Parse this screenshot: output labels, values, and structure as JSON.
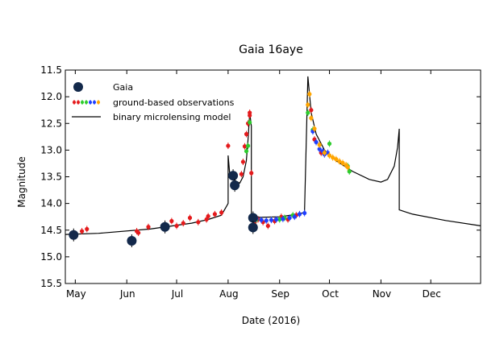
{
  "chart_data": {
    "type": "scatter",
    "title": "Gaia 16aye",
    "xlabel": "Date (2016)",
    "ylabel": "Magnitude",
    "x_unit": "date",
    "xlim": [
      "2016-04-25",
      "2016-12-31"
    ],
    "ylim": [
      15.5,
      11.5
    ],
    "y_inverted": true,
    "x_ticks": [
      {
        "date": "2016-05-01",
        "label": "May"
      },
      {
        "date": "2016-06-01",
        "label": "Jun"
      },
      {
        "date": "2016-07-01",
        "label": "Jul"
      },
      {
        "date": "2016-08-01",
        "label": "Aug"
      },
      {
        "date": "2016-09-01",
        "label": "Sep"
      },
      {
        "date": "2016-10-01",
        "label": "Oct"
      },
      {
        "date": "2016-11-01",
        "label": "Nov"
      },
      {
        "date": "2016-12-01",
        "label": "Dec"
      }
    ],
    "y_ticks": [
      "11.5",
      "12.0",
      "12.5",
      "13.0",
      "13.5",
      "14.0",
      "14.5",
      "15.0",
      "15.5"
    ],
    "grid": false,
    "legend_position": "top-left",
    "legend": [
      {
        "key": "gaia",
        "label": "Gaia"
      },
      {
        "key": "ground",
        "label": "ground-based observations"
      },
      {
        "key": "model",
        "label": "binary microlensing model"
      }
    ],
    "colors": {
      "gaia": "#13294b",
      "red": "#e41a1c",
      "green": "#2ecc2e",
      "blue": "#1f3fff",
      "orange": "#ffa500",
      "model": "#000000"
    },
    "series": [
      {
        "name": "Gaia",
        "key": "gaia",
        "points": [
          [
            "2016-04-30",
            14.59
          ],
          [
            "2016-06-04",
            14.7
          ],
          [
            "2016-06-24",
            14.44
          ],
          [
            "2016-08-04",
            13.48
          ],
          [
            "2016-08-05",
            13.66
          ],
          [
            "2016-08-16",
            14.27
          ],
          [
            "2016-08-16",
            14.45
          ]
        ]
      },
      {
        "name": "ground-based observations",
        "key": "ground",
        "groups": [
          {
            "color": "red",
            "points": [
              [
                "2016-05-05",
                14.52
              ],
              [
                "2016-05-08",
                14.48
              ],
              [
                "2016-06-07",
                14.52
              ],
              [
                "2016-06-08",
                14.55
              ],
              [
                "2016-06-14",
                14.44
              ],
              [
                "2016-06-28",
                14.33
              ],
              [
                "2016-07-01",
                14.42
              ],
              [
                "2016-07-05",
                14.37
              ],
              [
                "2016-07-09",
                14.27
              ],
              [
                "2016-07-14",
                14.35
              ],
              [
                "2016-07-19",
                14.3
              ],
              [
                "2016-07-20",
                14.24
              ],
              [
                "2016-07-24",
                14.2
              ],
              [
                "2016-07-28",
                14.17
              ],
              [
                "2016-08-01",
                12.92
              ],
              [
                "2016-08-09",
                13.45
              ],
              [
                "2016-08-10",
                13.22
              ],
              [
                "2016-08-11",
                12.93
              ],
              [
                "2016-08-12",
                12.7
              ],
              [
                "2016-08-13",
                12.5
              ],
              [
                "2016-08-14",
                12.3
              ],
              [
                "2016-08-14",
                12.35
              ],
              [
                "2016-08-15",
                13.43
              ],
              [
                "2016-08-17",
                14.35
              ],
              [
                "2016-08-19",
                14.3
              ],
              [
                "2016-08-22",
                14.35
              ],
              [
                "2016-08-25",
                14.42
              ],
              [
                "2016-08-29",
                14.33
              ],
              [
                "2016-09-02",
                14.25
              ],
              [
                "2016-09-06",
                14.3
              ],
              [
                "2016-09-11",
                14.22
              ],
              [
                "2016-09-20",
                12.25
              ],
              [
                "2016-09-22",
                12.8
              ],
              [
                "2016-09-26",
                13.05
              ]
            ]
          },
          {
            "color": "green",
            "points": [
              [
                "2016-08-12",
                13.02
              ],
              [
                "2016-08-13",
                12.92
              ],
              [
                "2016-08-14",
                12.48
              ],
              [
                "2016-08-18",
                14.3
              ],
              [
                "2016-09-01",
                14.3
              ],
              [
                "2016-09-04",
                14.27
              ],
              [
                "2016-09-09",
                14.22
              ],
              [
                "2016-09-18",
                12.3
              ],
              [
                "2016-09-21",
                12.62
              ],
              [
                "2016-10-01",
                12.88
              ],
              [
                "2016-10-12",
                13.3
              ],
              [
                "2016-10-13",
                13.4
              ]
            ]
          },
          {
            "color": "blue",
            "points": [
              [
                "2016-08-18",
                14.28
              ],
              [
                "2016-08-21",
                14.31
              ],
              [
                "2016-08-24",
                14.32
              ],
              [
                "2016-08-27",
                14.31
              ],
              [
                "2016-08-30",
                14.3
              ],
              [
                "2016-09-03",
                14.29
              ],
              [
                "2016-09-07",
                14.27
              ],
              [
                "2016-09-10",
                14.25
              ],
              [
                "2016-09-13",
                14.2
              ],
              [
                "2016-09-16",
                14.18
              ],
              [
                "2016-09-21",
                12.65
              ],
              [
                "2016-09-23",
                12.85
              ],
              [
                "2016-09-25",
                12.98
              ],
              [
                "2016-09-27",
                13.02
              ],
              [
                "2016-09-28",
                13.08
              ],
              [
                "2016-09-30",
                13.05
              ]
            ]
          },
          {
            "color": "orange",
            "points": [
              [
                "2016-09-18",
                12.15
              ],
              [
                "2016-09-19",
                11.95
              ],
              [
                "2016-09-20",
                12.4
              ],
              [
                "2016-09-22",
                12.6
              ],
              [
                "2016-09-25",
                12.9
              ],
              [
                "2016-09-28",
                13.05
              ],
              [
                "2016-10-01",
                13.1
              ],
              [
                "2016-10-03",
                13.14
              ],
              [
                "2016-10-05",
                13.17
              ],
              [
                "2016-10-07",
                13.21
              ],
              [
                "2016-10-09",
                13.24
              ],
              [
                "2016-10-11",
                13.28
              ],
              [
                "2016-10-12",
                13.32
              ]
            ]
          }
        ]
      },
      {
        "name": "binary microlensing model",
        "key": "model",
        "line": [
          [
            "2016-04-25",
            14.58
          ],
          [
            "2016-05-15",
            14.56
          ],
          [
            "2016-06-15",
            14.48
          ],
          [
            "2016-07-10",
            14.37
          ],
          [
            "2016-07-20",
            14.3
          ],
          [
            "2016-07-28",
            14.22
          ],
          [
            "2016-08-01",
            14.0
          ],
          [
            "2016-08-01",
            13.1
          ],
          [
            "2016-08-02",
            13.45
          ],
          [
            "2016-08-04",
            13.55
          ],
          [
            "2016-08-08",
            13.62
          ],
          [
            "2016-08-10",
            13.5
          ],
          [
            "2016-08-12",
            13.2
          ],
          [
            "2016-08-13",
            12.8
          ],
          [
            "2016-08-14",
            12.3
          ],
          [
            "2016-08-15",
            12.55
          ],
          [
            "2016-08-15",
            14.2
          ],
          [
            "2016-08-20",
            14.26
          ],
          [
            "2016-09-01",
            14.25
          ],
          [
            "2016-09-10",
            14.21
          ],
          [
            "2016-09-16",
            14.17
          ],
          [
            "2016-09-18",
            11.62
          ],
          [
            "2016-09-20",
            12.3
          ],
          [
            "2016-09-23",
            12.7
          ],
          [
            "2016-09-28",
            13.0
          ],
          [
            "2016-10-05",
            13.2
          ],
          [
            "2016-10-15",
            13.4
          ],
          [
            "2016-10-25",
            13.55
          ],
          [
            "2016-11-01",
            13.6
          ],
          [
            "2016-11-05",
            13.55
          ],
          [
            "2016-11-09",
            13.3
          ],
          [
            "2016-11-11",
            12.95
          ],
          [
            "2016-11-12",
            12.6
          ],
          [
            "2016-11-12",
            14.12
          ],
          [
            "2016-11-20",
            14.2
          ],
          [
            "2016-12-10",
            14.32
          ],
          [
            "2016-12-31",
            14.42
          ]
        ]
      }
    ]
  }
}
